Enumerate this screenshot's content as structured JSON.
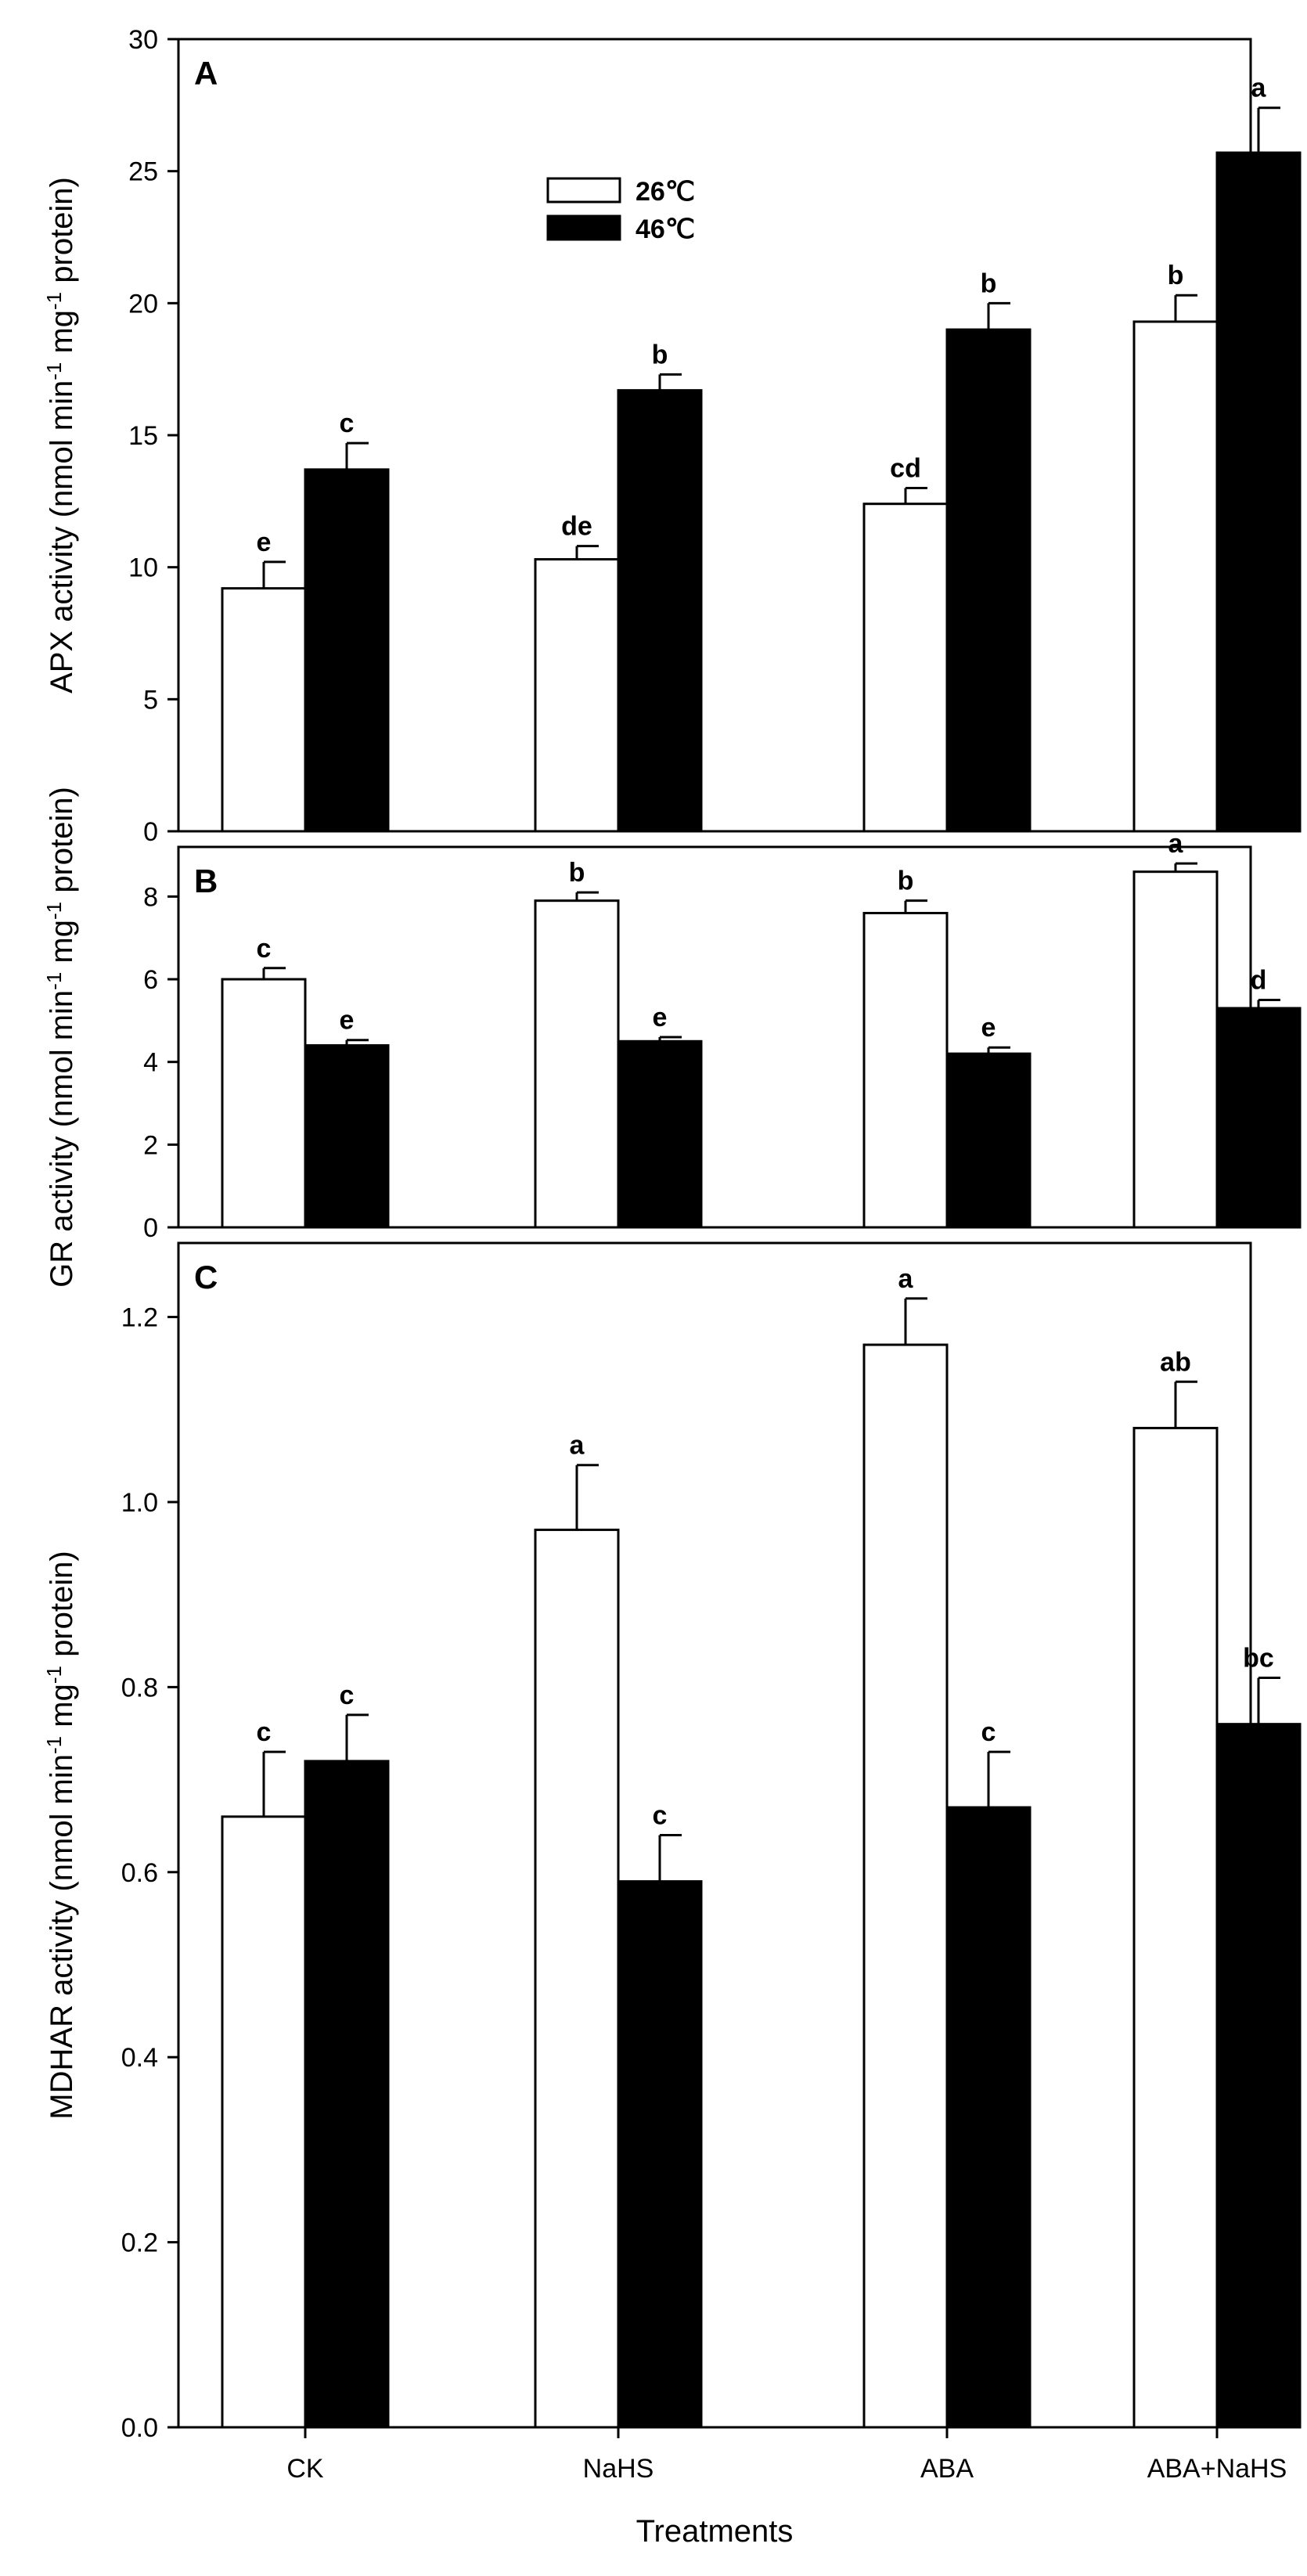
{
  "chart_data": [
    {
      "panel": "A",
      "type": "bar",
      "ylabel_main": "APX activity (nmol min",
      "ylabel_sup1": "-1",
      "ylabel_mid": " mg",
      "ylabel_sup2": "-1",
      "ylabel_end": " protein)",
      "ylim": [
        0,
        30
      ],
      "yticks": [
        0,
        5,
        10,
        15,
        20,
        25,
        30
      ],
      "ytick_labels": [
        "0",
        "5",
        "10",
        "15",
        "20",
        "25",
        "30"
      ],
      "categories": [
        "CK",
        "NaHS",
        "ABA",
        "ABA+NaHS"
      ],
      "series": [
        {
          "name": "26℃",
          "values": [
            9.2,
            10.3,
            12.4,
            19.3
          ],
          "errors": [
            1.0,
            0.5,
            0.6,
            1.0
          ],
          "letters": [
            "e",
            "de",
            "cd",
            "b"
          ]
        },
        {
          "name": "46℃",
          "values": [
            13.7,
            16.7,
            19.0,
            25.7
          ],
          "errors": [
            1.0,
            0.6,
            1.0,
            1.7
          ],
          "letters": [
            "c",
            "b",
            "b",
            "a"
          ]
        }
      ],
      "legend": {
        "position": "top-center",
        "entries": [
          "26℃",
          "46℃"
        ]
      }
    },
    {
      "panel": "B",
      "type": "bar",
      "ylabel_main": "GR activity (nmol min",
      "ylabel_sup1": "-1",
      "ylabel_mid": " mg",
      "ylabel_sup2": "-1",
      "ylabel_end": " protein)",
      "ylim": [
        0,
        9.2
      ],
      "yticks": [
        0,
        2,
        4,
        6,
        8
      ],
      "ytick_labels": [
        "0",
        "2",
        "4",
        "6",
        "8"
      ],
      "categories": [
        "CK",
        "NaHS",
        "ABA",
        "ABA+NaHS"
      ],
      "series": [
        {
          "name": "26℃",
          "values": [
            6.0,
            7.9,
            7.6,
            8.6
          ],
          "errors": [
            0.27,
            0.2,
            0.3,
            0.2
          ],
          "letters": [
            "c",
            "b",
            "b",
            "a"
          ]
        },
        {
          "name": "46℃",
          "values": [
            4.4,
            4.5,
            4.2,
            5.3
          ],
          "errors": [
            0.13,
            0.1,
            0.15,
            0.2
          ],
          "letters": [
            "e",
            "e",
            "e",
            "d"
          ]
        }
      ]
    },
    {
      "panel": "C",
      "type": "bar",
      "ylabel_main": "MDHAR activity (nmol min",
      "ylabel_sup1": "-1",
      "ylabel_mid": " mg",
      "ylabel_sup2": "-1",
      "ylabel_end": " protein)",
      "ylim": [
        0,
        1.28
      ],
      "yticks": [
        0,
        0.2,
        0.4,
        0.6,
        0.8,
        1.0,
        1.2
      ],
      "ytick_labels": [
        "0.0",
        "0.2",
        "0.4",
        "0.6",
        "0.8",
        "1.0",
        "1.2"
      ],
      "categories": [
        "CK",
        "NaHS",
        "ABA",
        "ABA+NaHS"
      ],
      "series": [
        {
          "name": "26℃",
          "values": [
            0.66,
            0.97,
            1.17,
            1.08
          ],
          "errors": [
            0.07,
            0.07,
            0.05,
            0.05
          ],
          "letters": [
            "c",
            "a",
            "a",
            "ab"
          ]
        },
        {
          "name": "46℃",
          "values": [
            0.72,
            0.59,
            0.67,
            0.76
          ],
          "errors": [
            0.05,
            0.05,
            0.06,
            0.05
          ],
          "letters": [
            "c",
            "c",
            "c",
            "bc"
          ]
        }
      ],
      "xlabel": "Treatments"
    }
  ],
  "colors": {
    "series_26": "#ffffff",
    "series_46": "#000000",
    "stroke": "#000000"
  }
}
